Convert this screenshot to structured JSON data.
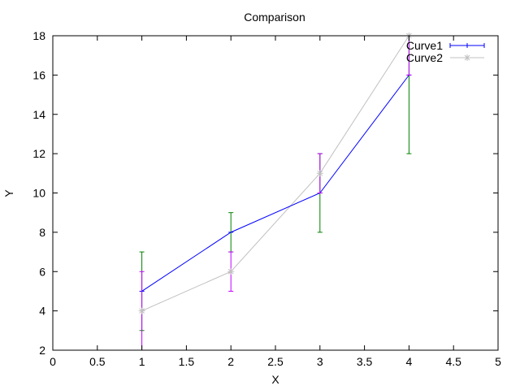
{
  "chart_data": {
    "type": "line",
    "title": "Comparison",
    "xlabel": "X",
    "ylabel": "Y",
    "xlim": [
      0,
      5
    ],
    "ylim": [
      2,
      18
    ],
    "xticks": [
      "0",
      "0.5",
      "1",
      "1.5",
      "2",
      "2.5",
      "3",
      "3.5",
      "4",
      "4.5",
      "5"
    ],
    "yticks": [
      "2",
      "4",
      "6",
      "8",
      "10",
      "12",
      "14",
      "16",
      "18"
    ],
    "grid": false,
    "legend_position": "top-right",
    "series": [
      {
        "name": "Curve1",
        "color": "#0000ff",
        "errorbar_color": "#008000",
        "marker": "tick",
        "x": [
          1,
          2,
          3,
          4
        ],
        "y": [
          5,
          8,
          10,
          16
        ],
        "err": [
          2,
          1,
          2,
          4
        ]
      },
      {
        "name": "Curve2",
        "color": "#c0c0c0",
        "errorbar_color": "#c000ff",
        "marker": "asterisk",
        "x": [
          1,
          2,
          3,
          4
        ],
        "y": [
          4,
          6,
          11,
          18
        ],
        "err": [
          2,
          1,
          1,
          2
        ]
      }
    ]
  }
}
